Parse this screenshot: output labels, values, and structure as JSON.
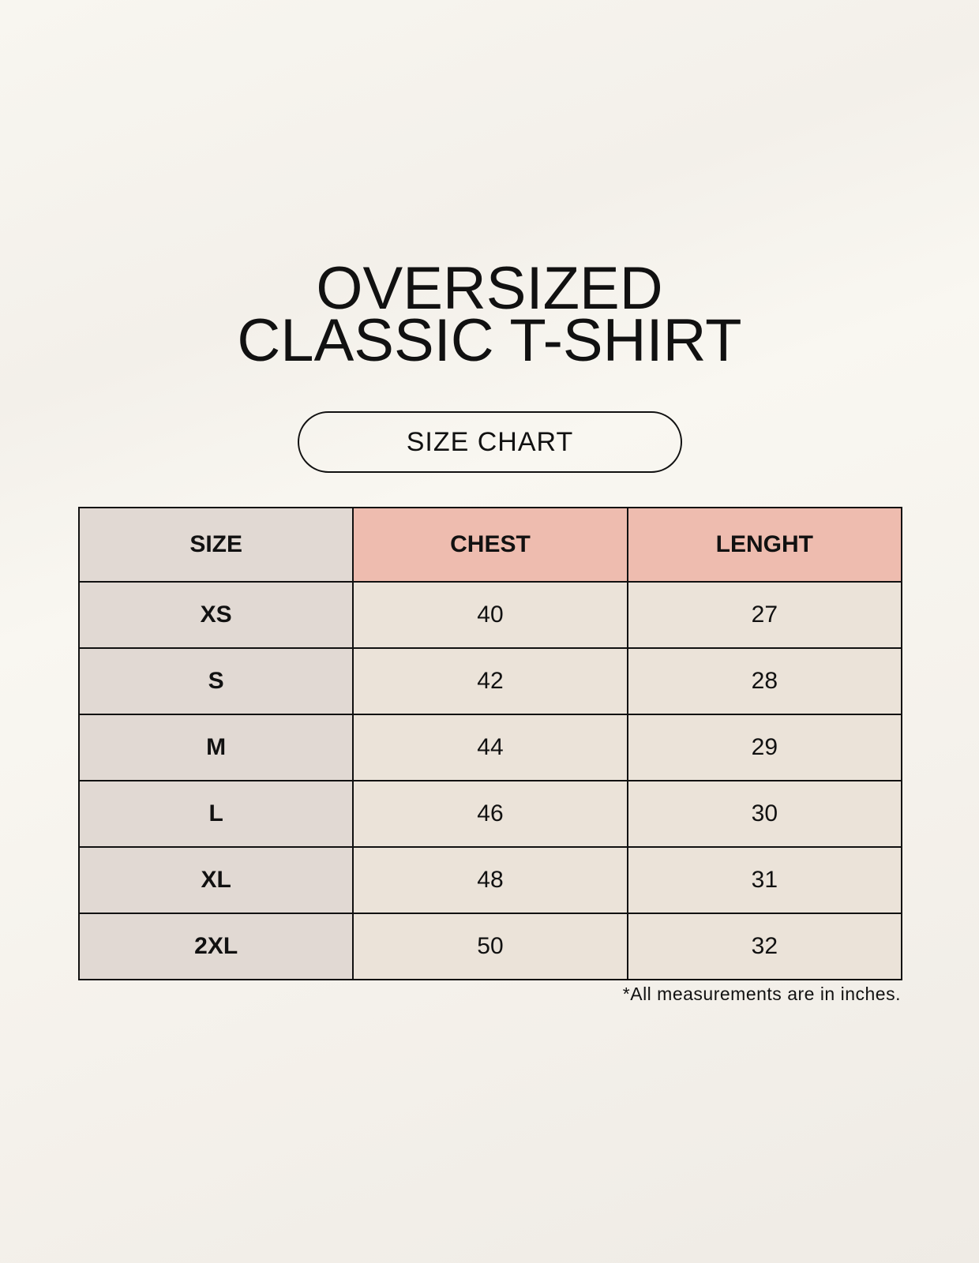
{
  "title": {
    "line1": "OVERSIZED",
    "line2": "CLASSIC T-SHIRT"
  },
  "badge": "SIZE CHART",
  "colors": {
    "size_column": "#e1d9d3",
    "header_accent": "#eebcaf",
    "body_cells": "#ebe3d9"
  },
  "table": {
    "headers": [
      "SIZE",
      "CHEST",
      "LENGHT"
    ],
    "rows": [
      [
        "XS",
        "40",
        "27"
      ],
      [
        "S",
        "42",
        "28"
      ],
      [
        "M",
        "44",
        "29"
      ],
      [
        "L",
        "46",
        "30"
      ],
      [
        "XL",
        "48",
        "31"
      ],
      [
        "2XL",
        "50",
        "32"
      ]
    ]
  },
  "footnote": "*All measurements are in inches."
}
